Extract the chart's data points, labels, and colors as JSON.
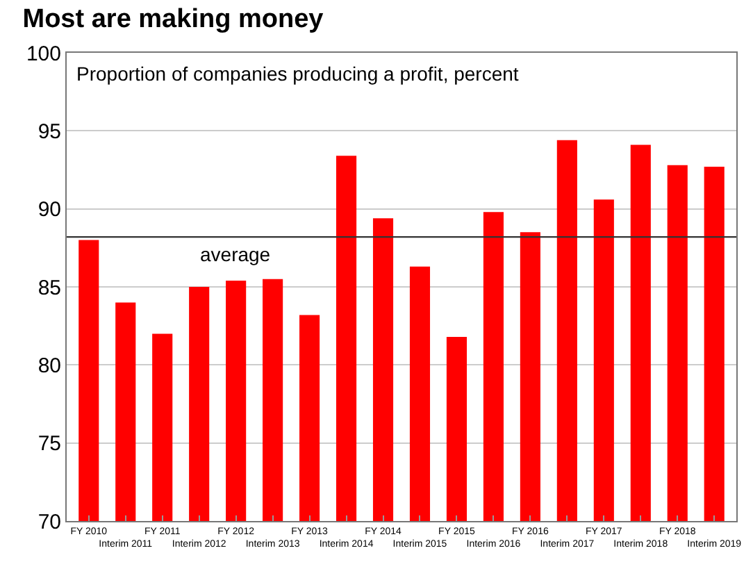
{
  "chart_data": {
    "type": "bar",
    "title": "Most are making money",
    "subtitle": "Proportion of companies producing a profit, percent",
    "categories": [
      "FY 2010",
      "Interim 2011",
      "FY 2011",
      "Interim 2012",
      "FY 2012",
      "Interim 2013",
      "FY 2013",
      "Interim 2014",
      "FY 2014",
      "Interim 2015",
      "FY 2015",
      "Interim 2016",
      "FY 2016",
      "Interim 2017",
      "FY 2017",
      "Interim 2018",
      "FY 2018",
      "Interim 2019"
    ],
    "values": [
      88.0,
      84.0,
      82.0,
      85.0,
      85.4,
      85.5,
      83.2,
      93.4,
      89.4,
      86.3,
      81.8,
      89.8,
      88.5,
      94.4,
      90.6,
      94.1,
      92.8,
      92.7
    ],
    "color": "#ff0000",
    "ylim": [
      70,
      100
    ],
    "yticks": [
      70,
      75,
      80,
      85,
      90,
      95,
      100
    ],
    "grid": "y",
    "ref_lines": [
      {
        "axis": "y",
        "value": 88.2,
        "label": "average",
        "color": "#333333"
      }
    ]
  }
}
